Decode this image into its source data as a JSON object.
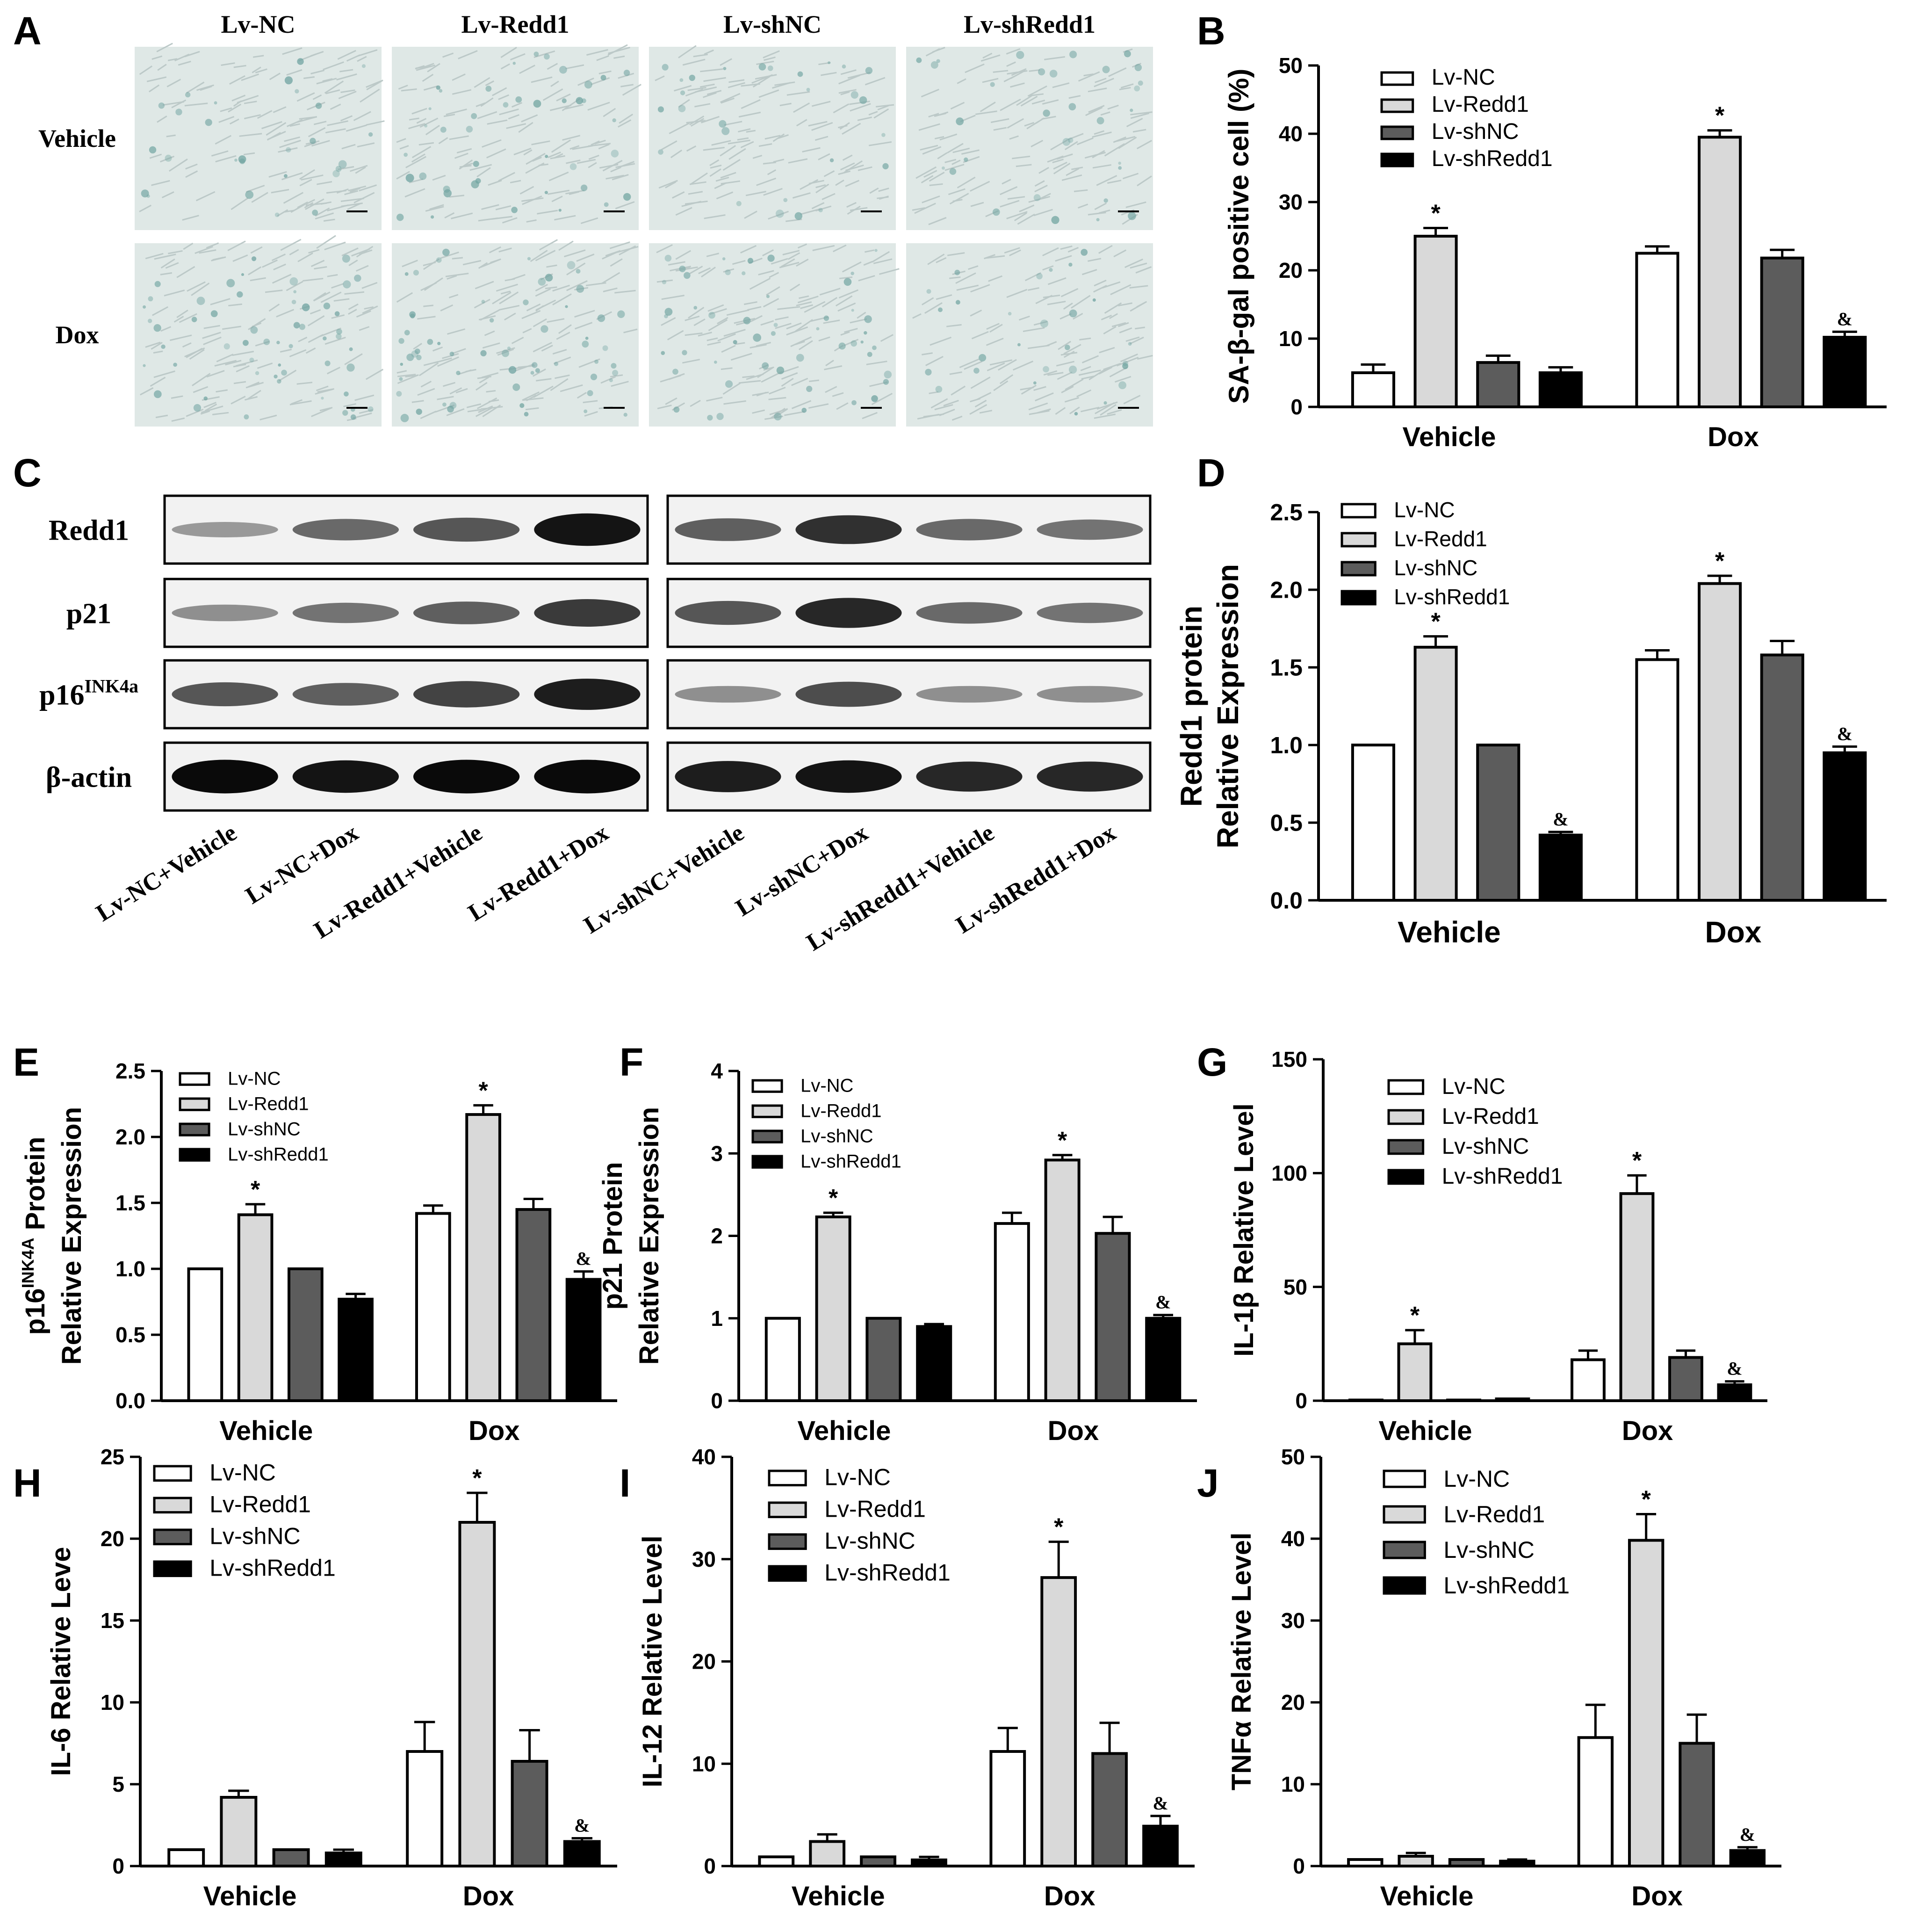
{
  "colors": {
    "Lv-NC": "#ffffff",
    "Lv-Redd1": "#d9d9d9",
    "Lv-shNC": "#5c5c5c",
    "Lv-shRedd1": "#000000",
    "axis": "#1a1a1a",
    "micro_bg": "#dfe8e6",
    "micro_stain": "#6fa3a0"
  },
  "panel_letters": [
    "A",
    "B",
    "C",
    "D",
    "E",
    "F",
    "G",
    "H",
    "I",
    "J"
  ],
  "panel_a": {
    "columns": [
      "Lv-NC",
      "Lv-Redd1",
      "Lv-shNC",
      "Lv-shRedd1"
    ],
    "rows": [
      "Vehicle",
      "Dox"
    ],
    "stain_density": [
      [
        0.3,
        0.45,
        0.3,
        0.35
      ],
      [
        0.6,
        0.65,
        0.55,
        0.3
      ]
    ]
  },
  "panel_c": {
    "proteins": [
      "Redd1",
      "p21",
      "p16",
      "β-actin"
    ],
    "p16_sup": "INK4a",
    "lanes_left": [
      "Lv-NC+Vehicle",
      "Lv-NC+Dox",
      "Lv-Redd1+Vehicle",
      "Lv-Redd1+Dox"
    ],
    "lanes_right": [
      "Lv-shNC+Vehicle",
      "Lv-shNC+Dox",
      "Lv-shRedd1+Vehicle",
      "Lv-shRedd1+Dox"
    ],
    "intensity_left": [
      [
        0.25,
        0.5,
        0.6,
        0.95
      ],
      [
        0.3,
        0.45,
        0.55,
        0.75
      ],
      [
        0.6,
        0.55,
        0.7,
        0.9
      ],
      [
        1,
        0.95,
        1,
        1
      ]
    ],
    "intensity_right": [
      [
        0.55,
        0.8,
        0.5,
        0.45
      ],
      [
        0.6,
        0.85,
        0.5,
        0.45
      ],
      [
        0.3,
        0.65,
        0.3,
        0.3
      ],
      [
        0.9,
        0.95,
        0.85,
        0.85
      ]
    ]
  },
  "chart_data": [
    {
      "id": "B",
      "type": "bar",
      "categories": [
        "Vehicle",
        "Dox"
      ],
      "series_names": [
        "Lv-NC",
        "Lv-Redd1",
        "Lv-shNC",
        "Lv-shRedd1"
      ],
      "values": [
        [
          5,
          25,
          6.5,
          5
        ],
        [
          22.5,
          39.5,
          21.8,
          10.2
        ]
      ],
      "errors": [
        [
          1.2,
          1.2,
          1,
          0.8
        ],
        [
          1,
          1,
          1.2,
          0.8
        ]
      ],
      "marks": [
        [
          "",
          "*",
          "",
          ""
        ],
        [
          "",
          "*",
          "",
          "&"
        ]
      ],
      "ylabel": "SA-β-gal positive cell (%)",
      "ylim": [
        0,
        50
      ],
      "yticks": [
        0,
        10,
        20,
        30,
        40,
        50
      ]
    },
    {
      "id": "D",
      "type": "bar",
      "categories": [
        "Vehicle",
        "Dox"
      ],
      "series_names": [
        "Lv-NC",
        "Lv-Redd1",
        "Lv-shNC",
        "Lv-shRedd1"
      ],
      "values": [
        [
          1.0,
          1.63,
          1.0,
          0.42
        ],
        [
          1.55,
          2.04,
          1.58,
          0.95
        ]
      ],
      "errors": [
        [
          0,
          0.07,
          0,
          0.02
        ],
        [
          0.06,
          0.05,
          0.09,
          0.04
        ]
      ],
      "marks": [
        [
          "",
          "*",
          "",
          "&"
        ],
        [
          "",
          "*",
          "",
          "&"
        ]
      ],
      "ylabel_lines": [
        "Redd1 protein",
        "Relative Expression"
      ],
      "ylim": [
        0,
        2.5
      ],
      "yticks": [
        "0.0",
        "0.5",
        "1.0",
        "1.5",
        "2.0",
        "2.5"
      ]
    },
    {
      "id": "E",
      "type": "bar",
      "categories": [
        "Vehicle",
        "Dox"
      ],
      "series_names": [
        "Lv-NC",
        "Lv-Redd1",
        "Lv-shNC",
        "Lv-shRedd1"
      ],
      "values": [
        [
          1.0,
          1.41,
          1.0,
          0.77
        ],
        [
          1.42,
          2.17,
          1.45,
          0.92
        ]
      ],
      "errors": [
        [
          0,
          0.08,
          0,
          0.04
        ],
        [
          0.06,
          0.07,
          0.08,
          0.06
        ]
      ],
      "marks": [
        [
          "",
          "*",
          "",
          ""
        ],
        [
          "",
          "*",
          "",
          "&"
        ]
      ],
      "ylabel_lines": [
        "p16 Protein",
        "Relative Expression"
      ],
      "ylabel_sup": "INK4A",
      "ylim": [
        0,
        2.5
      ],
      "yticks": [
        "0.0",
        "0.5",
        "1.0",
        "1.5",
        "2.0",
        "2.5"
      ]
    },
    {
      "id": "F",
      "type": "bar",
      "categories": [
        "Vehicle",
        "Dox"
      ],
      "series_names": [
        "Lv-NC",
        "Lv-Redd1",
        "Lv-shNC",
        "Lv-shRedd1"
      ],
      "values": [
        [
          1.0,
          2.23,
          1.0,
          0.9
        ],
        [
          2.15,
          2.92,
          2.03,
          1.0
        ]
      ],
      "errors": [
        [
          0,
          0.05,
          0,
          0.03
        ],
        [
          0.13,
          0.06,
          0.2,
          0.04
        ]
      ],
      "marks": [
        [
          "",
          "*",
          "",
          ""
        ],
        [
          "",
          "*",
          "",
          "&"
        ]
      ],
      "ylabel_lines": [
        "p21 Protein",
        "Relative Expression"
      ],
      "ylim": [
        0,
        4
      ],
      "yticks": [
        0,
        1,
        2,
        3,
        4
      ]
    },
    {
      "id": "G",
      "type": "bar",
      "categories": [
        "Vehicle",
        "Dox"
      ],
      "series_names": [
        "Lv-NC",
        "Lv-Redd1",
        "Lv-shNC",
        "Lv-shRedd1"
      ],
      "values": [
        [
          0.3,
          25,
          0.3,
          0.8
        ],
        [
          18,
          91,
          19,
          7
        ]
      ],
      "errors": [
        [
          0,
          6,
          0,
          0
        ],
        [
          4,
          8,
          3,
          1.5
        ]
      ],
      "marks": [
        [
          "",
          "*",
          "",
          ""
        ],
        [
          "",
          "*",
          "",
          "&"
        ]
      ],
      "ylabel": "IL-1β Relative Level",
      "ylim": [
        0,
        150
      ],
      "yticks": [
        0,
        50,
        100,
        150
      ]
    },
    {
      "id": "H",
      "type": "bar",
      "categories": [
        "Vehicle",
        "Dox"
      ],
      "series_names": [
        "Lv-NC",
        "Lv-Redd1",
        "Lv-shNC",
        "Lv-shRedd1"
      ],
      "values": [
        [
          1.0,
          4.2,
          1.0,
          0.8
        ],
        [
          7,
          21,
          6.4,
          1.5
        ]
      ],
      "errors": [
        [
          0,
          0.4,
          0,
          0.2
        ],
        [
          1.8,
          1.8,
          1.9,
          0.2
        ]
      ],
      "marks": [
        [
          "",
          "",
          "",
          ""
        ],
        [
          "",
          "*",
          "",
          "&"
        ]
      ],
      "ylabel": "IL-6 Relative Leve",
      "ylim": [
        0,
        25
      ],
      "yticks": [
        0,
        5,
        10,
        15,
        20,
        25
      ]
    },
    {
      "id": "I",
      "type": "bar",
      "categories": [
        "Vehicle",
        "Dox"
      ],
      "series_names": [
        "Lv-NC",
        "Lv-Redd1",
        "Lv-shNC",
        "Lv-shRedd1"
      ],
      "values": [
        [
          0.9,
          2.4,
          0.9,
          0.6
        ],
        [
          11.2,
          28.2,
          11,
          3.9
        ]
      ],
      "errors": [
        [
          0,
          0.7,
          0,
          0.3
        ],
        [
          2.3,
          3.5,
          3,
          1
        ]
      ],
      "marks": [
        [
          "",
          "",
          "",
          ""
        ],
        [
          "",
          "*",
          "",
          "&"
        ]
      ],
      "ylabel": "IL-12 Relative Level",
      "ylim": [
        0,
        40
      ],
      "yticks": [
        0,
        10,
        20,
        30,
        40
      ]
    },
    {
      "id": "J",
      "type": "bar",
      "categories": [
        "Vehicle",
        "Dox"
      ],
      "series_names": [
        "Lv-NC",
        "Lv-Redd1",
        "Lv-shNC",
        "Lv-shRedd1"
      ],
      "values": [
        [
          0.8,
          1.2,
          0.8,
          0.6
        ],
        [
          15.7,
          39.8,
          15,
          1.9
        ]
      ],
      "errors": [
        [
          0,
          0.4,
          0,
          0.2
        ],
        [
          4,
          3.2,
          3.5,
          0.4
        ]
      ],
      "marks": [
        [
          "",
          "",
          "",
          ""
        ],
        [
          "",
          "*",
          "",
          "&"
        ]
      ],
      "ylabel": "TNFα Relative Level",
      "ylim": [
        0,
        50
      ],
      "yticks": [
        0,
        10,
        20,
        30,
        40,
        50
      ]
    }
  ]
}
